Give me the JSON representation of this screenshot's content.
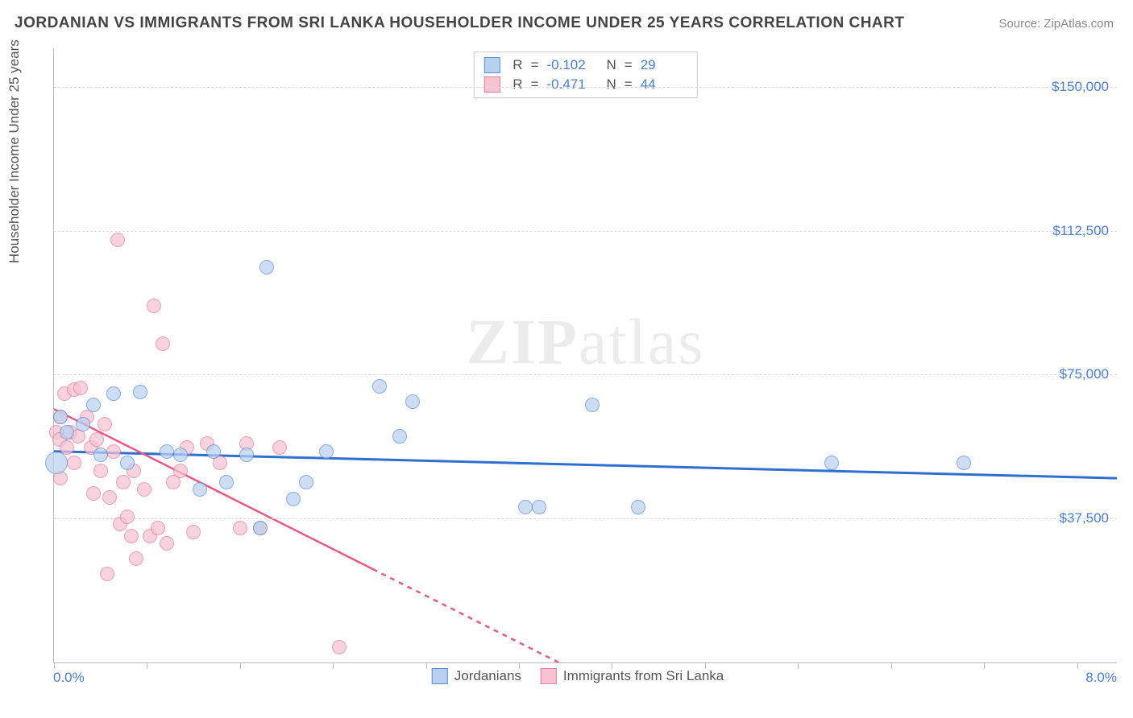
{
  "header": {
    "title": "JORDANIAN VS IMMIGRANTS FROM SRI LANKA HOUSEHOLDER INCOME UNDER 25 YEARS CORRELATION CHART",
    "source": "Source: ZipAtlas.com"
  },
  "chart": {
    "type": "scatter",
    "ylabel": "Householder Income Under 25 years",
    "watermark": "ZIPatlas",
    "background_color": "#ffffff",
    "grid_color": "#dddddd",
    "axis_color": "#bbbbbb",
    "xlim": [
      0,
      8
    ],
    "ylim": [
      0,
      160000
    ],
    "xticks": [
      0,
      0.7,
      1.4,
      2.1,
      2.8,
      3.5,
      4.2,
      4.9,
      5.6,
      6.3,
      7.0,
      7.7
    ],
    "xaxis_labels": [
      {
        "value": "0.0%",
        "pos": 0
      },
      {
        "value": "8.0%",
        "pos": 8
      }
    ],
    "ytick_labels": [
      {
        "value": "$37,500",
        "pos": 37500
      },
      {
        "value": "$75,000",
        "pos": 75000
      },
      {
        "value": "$112,500",
        "pos": 112500
      },
      {
        "value": "$150,000",
        "pos": 150000
      }
    ],
    "series": [
      {
        "name": "Jordanians",
        "color_fill": "#b9d1f0",
        "color_stroke": "#5a8ed6",
        "marker_opacity": 0.72,
        "marker_radius": 9,
        "R": "-0.102",
        "N": "29",
        "trend": {
          "x1": 0,
          "y1": 55000,
          "x2": 8,
          "y2": 48000,
          "color": "#2f6fd0",
          "width": 3,
          "dash_after_x": 8
        },
        "points": [
          {
            "x": 0.02,
            "y": 52000,
            "r": 14
          },
          {
            "x": 0.05,
            "y": 64000
          },
          {
            "x": 0.1,
            "y": 60000
          },
          {
            "x": 0.22,
            "y": 62000
          },
          {
            "x": 0.3,
            "y": 67000
          },
          {
            "x": 0.35,
            "y": 54000
          },
          {
            "x": 0.45,
            "y": 70000
          },
          {
            "x": 0.55,
            "y": 52000
          },
          {
            "x": 0.65,
            "y": 70500
          },
          {
            "x": 0.85,
            "y": 55000
          },
          {
            "x": 0.95,
            "y": 54000
          },
          {
            "x": 1.1,
            "y": 45000
          },
          {
            "x": 1.2,
            "y": 55000
          },
          {
            "x": 1.3,
            "y": 47000
          },
          {
            "x": 1.45,
            "y": 54000
          },
          {
            "x": 1.55,
            "y": 35000
          },
          {
            "x": 1.6,
            "y": 103000
          },
          {
            "x": 1.8,
            "y": 42500
          },
          {
            "x": 1.9,
            "y": 47000
          },
          {
            "x": 2.05,
            "y": 55000
          },
          {
            "x": 2.45,
            "y": 72000
          },
          {
            "x": 2.6,
            "y": 59000
          },
          {
            "x": 2.7,
            "y": 68000
          },
          {
            "x": 3.55,
            "y": 40500
          },
          {
            "x": 3.65,
            "y": 40500
          },
          {
            "x": 4.05,
            "y": 67000
          },
          {
            "x": 4.4,
            "y": 40500
          },
          {
            "x": 5.85,
            "y": 52000
          },
          {
            "x": 6.85,
            "y": 52000
          }
        ]
      },
      {
        "name": "Immigrants from Sri Lanka",
        "color_fill": "#f6c3d1",
        "color_stroke": "#e87a9a",
        "marker_opacity": 0.72,
        "marker_radius": 9,
        "R": "-0.471",
        "N": "44",
        "trend": {
          "x1": 0,
          "y1": 66000,
          "x2": 3.8,
          "y2": 0,
          "color": "#e85a85",
          "width": 2.5,
          "dash_after_x": 2.4
        },
        "points": [
          {
            "x": 0.02,
            "y": 60000
          },
          {
            "x": 0.04,
            "y": 58000
          },
          {
            "x": 0.05,
            "y": 64000
          },
          {
            "x": 0.05,
            "y": 48000
          },
          {
            "x": 0.08,
            "y": 70000
          },
          {
            "x": 0.1,
            "y": 56000
          },
          {
            "x": 0.12,
            "y": 60000
          },
          {
            "x": 0.15,
            "y": 71000
          },
          {
            "x": 0.15,
            "y": 52000
          },
          {
            "x": 0.18,
            "y": 59000
          },
          {
            "x": 0.2,
            "y": 71500
          },
          {
            "x": 0.25,
            "y": 64000
          },
          {
            "x": 0.28,
            "y": 56000
          },
          {
            "x": 0.3,
            "y": 44000
          },
          {
            "x": 0.32,
            "y": 58000
          },
          {
            "x": 0.35,
            "y": 50000
          },
          {
            "x": 0.38,
            "y": 62000
          },
          {
            "x": 0.4,
            "y": 23000
          },
          {
            "x": 0.42,
            "y": 43000
          },
          {
            "x": 0.45,
            "y": 55000
          },
          {
            "x": 0.48,
            "y": 110000
          },
          {
            "x": 0.5,
            "y": 36000
          },
          {
            "x": 0.52,
            "y": 47000
          },
          {
            "x": 0.55,
            "y": 38000
          },
          {
            "x": 0.58,
            "y": 33000
          },
          {
            "x": 0.6,
            "y": 50000
          },
          {
            "x": 0.62,
            "y": 27000
          },
          {
            "x": 0.68,
            "y": 45000
          },
          {
            "x": 0.72,
            "y": 33000
          },
          {
            "x": 0.75,
            "y": 93000
          },
          {
            "x": 0.78,
            "y": 35000
          },
          {
            "x": 0.82,
            "y": 83000
          },
          {
            "x": 0.85,
            "y": 31000
          },
          {
            "x": 0.9,
            "y": 47000
          },
          {
            "x": 0.95,
            "y": 50000
          },
          {
            "x": 1.0,
            "y": 56000
          },
          {
            "x": 1.05,
            "y": 34000
          },
          {
            "x": 1.15,
            "y": 57000
          },
          {
            "x": 1.25,
            "y": 52000
          },
          {
            "x": 1.4,
            "y": 35000
          },
          {
            "x": 1.45,
            "y": 57000
          },
          {
            "x": 1.55,
            "y": 35000
          },
          {
            "x": 1.7,
            "y": 56000
          },
          {
            "x": 2.15,
            "y": 4000
          }
        ]
      }
    ],
    "stats_box_labels": {
      "R": "R",
      "eq": "=",
      "N": "N"
    },
    "legend_labels": [
      "Jordanians",
      "Immigrants from Sri Lanka"
    ]
  }
}
